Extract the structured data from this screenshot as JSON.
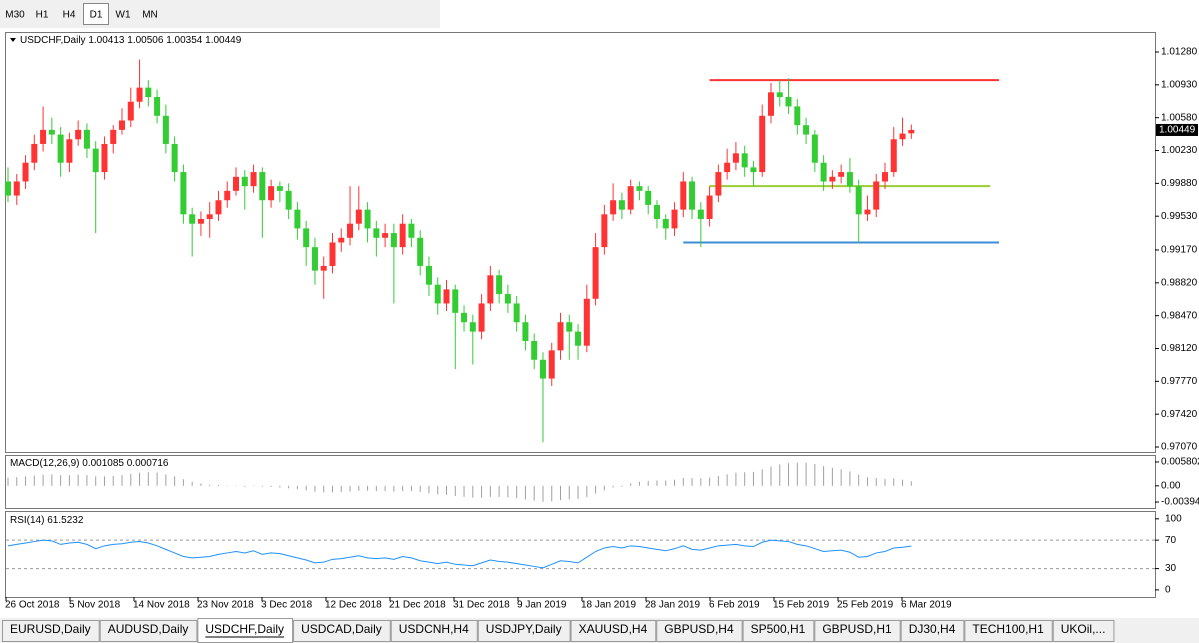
{
  "toolbar": {
    "timeframes": [
      "M30",
      "H1",
      "H4",
      "D1",
      "W1",
      "MN"
    ],
    "active": 3
  },
  "chart": {
    "type": "candlestick",
    "header": {
      "symbol": "USDCHF,Daily",
      "ohlc": [
        1.00413,
        1.00506,
        1.00354,
        1.00449
      ]
    },
    "up_color": "#ff3333",
    "down_color": "#33cc33",
    "ylim": [
      0.97017,
      1.01493
    ],
    "yticks": [
      {
        "value": 1.0128,
        "label": "1.01280"
      },
      {
        "value": 1.0093,
        "label": "1.00930"
      },
      {
        "value": 1.0058,
        "label": "1.00580"
      },
      {
        "value": 1.0023,
        "label": "1.00230"
      },
      {
        "value": 0.9988,
        "label": "0.99880"
      },
      {
        "value": 0.9953,
        "label": "0.99530"
      },
      {
        "value": 0.9917,
        "label": "0.99170"
      },
      {
        "value": 0.9882,
        "label": "0.98820"
      },
      {
        "value": 0.9847,
        "label": "0.98470"
      },
      {
        "value": 0.9812,
        "label": "0.98120"
      },
      {
        "value": 0.9777,
        "label": "0.97770"
      },
      {
        "value": 0.9742,
        "label": "0.97420"
      },
      {
        "value": 0.9707,
        "label": "0.97070"
      }
    ],
    "current_price": 1.00449,
    "x_labels": [
      "26 Oct 2018",
      "5 Nov 2018",
      "14 Nov 2018",
      "23 Nov 2018",
      "3 Dec 2018",
      "12 Dec 2018",
      "21 Dec 2018",
      "31 Dec 2018",
      "9 Jan 2019",
      "18 Jan 2019",
      "28 Jan 2019",
      "6 Feb 2019",
      "15 Feb 2019",
      "25 Feb 2019",
      "6 Mar 2019"
    ],
    "levels": [
      {
        "price": 1.0098,
        "color": "#ff3333",
        "start": 80,
        "end": 113
      },
      {
        "price": 0.9985,
        "color": "#9acd32",
        "start": 80,
        "end": 112
      },
      {
        "price": 0.9925,
        "color": "#3c8dd8",
        "start": 77,
        "end": 113
      }
    ],
    "candles": [
      [
        0.999,
        1.0005,
        0.9968,
        0.9975
      ],
      [
        0.9975,
        0.9998,
        0.9965,
        0.999
      ],
      [
        0.999,
        1.0018,
        0.9982,
        1.001
      ],
      [
        1.001,
        1.004,
        1.0002,
        1.003
      ],
      [
        1.003,
        1.007,
        1.0022,
        1.0045
      ],
      [
        1.0045,
        1.0058,
        1.003,
        1.004
      ],
      [
        1.004,
        1.0048,
        0.9995,
        1.001
      ],
      [
        1.001,
        1.0042,
        1.0,
        1.0035
      ],
      [
        1.0035,
        1.0055,
        1.0028,
        1.0045
      ],
      [
        1.0045,
        1.0052,
        1.0015,
        1.0025
      ],
      [
        1.0025,
        1.0033,
        0.9935,
        1.0
      ],
      [
        1.0,
        1.0038,
        0.9992,
        1.003
      ],
      [
        1.003,
        1.005,
        1.002,
        1.0045
      ],
      [
        1.0045,
        1.0068,
        1.004,
        1.0055
      ],
      [
        1.0055,
        1.009,
        1.0048,
        1.0075
      ],
      [
        1.0075,
        1.012,
        1.0068,
        1.009
      ],
      [
        1.009,
        1.0098,
        1.007,
        1.008
      ],
      [
        1.008,
        1.0088,
        1.0052,
        1.006
      ],
      [
        1.006,
        1.0072,
        1.002,
        1.003
      ],
      [
        1.003,
        1.0038,
        0.999,
        1.0
      ],
      [
        1.0,
        1.0008,
        0.9945,
        0.9955
      ],
      [
        0.9955,
        0.9962,
        0.991,
        0.9945
      ],
      [
        0.9945,
        0.9958,
        0.9932,
        0.995
      ],
      [
        0.995,
        0.9968,
        0.993,
        0.9955
      ],
      [
        0.9955,
        0.998,
        0.9948,
        0.997
      ],
      [
        0.997,
        0.999,
        0.9962,
        0.998
      ],
      [
        0.998,
        1.0005,
        0.9975,
        0.9995
      ],
      [
        0.9995,
        1.0002,
        0.996,
        0.9985
      ],
      [
        0.9985,
        1.0008,
        0.9978,
        1.0
      ],
      [
        1.0,
        1.0005,
        0.993,
        0.997
      ],
      [
        0.997,
        0.9992,
        0.9962,
        0.9985
      ],
      [
        0.9985,
        0.999,
        0.9968,
        0.998
      ],
      [
        0.998,
        0.9988,
        0.995,
        0.996
      ],
      [
        0.996,
        0.9968,
        0.9928,
        0.994
      ],
      [
        0.994,
        0.9948,
        0.99,
        0.992
      ],
      [
        0.992,
        0.993,
        0.988,
        0.9895
      ],
      [
        0.9895,
        0.991,
        0.9865,
        0.99
      ],
      [
        0.99,
        0.9935,
        0.9892,
        0.9925
      ],
      [
        0.9925,
        0.994,
        0.9915,
        0.993
      ],
      [
        0.993,
        0.9985,
        0.9922,
        0.9945
      ],
      [
        0.9945,
        0.9985,
        0.9938,
        0.996
      ],
      [
        0.996,
        0.9968,
        0.9925,
        0.994
      ],
      [
        0.994,
        0.9948,
        0.991,
        0.993
      ],
      [
        0.993,
        0.9945,
        0.992,
        0.9935
      ],
      [
        0.9935,
        0.9945,
        0.986,
        0.992
      ],
      [
        0.992,
        0.9955,
        0.9912,
        0.9945
      ],
      [
        0.9945,
        0.995,
        0.992,
        0.993
      ],
      [
        0.993,
        0.9938,
        0.989,
        0.99
      ],
      [
        0.99,
        0.991,
        0.9868,
        0.988
      ],
      [
        0.988,
        0.9888,
        0.9848,
        0.986
      ],
      [
        0.986,
        0.9885,
        0.9852,
        0.9875
      ],
      [
        0.9875,
        0.988,
        0.979,
        0.985
      ],
      [
        0.985,
        0.9858,
        0.983,
        0.984
      ],
      [
        0.984,
        0.9848,
        0.9795,
        0.983
      ],
      [
        0.983,
        0.987,
        0.9822,
        0.986
      ],
      [
        0.986,
        0.99,
        0.9852,
        0.989
      ],
      [
        0.989,
        0.9896,
        0.986,
        0.987
      ],
      [
        0.987,
        0.988,
        0.985,
        0.986
      ],
      [
        0.986,
        0.9868,
        0.983,
        0.984
      ],
      [
        0.984,
        0.9848,
        0.981,
        0.982
      ],
      [
        0.982,
        0.9828,
        0.979,
        0.98
      ],
      [
        0.98,
        0.9808,
        0.9712,
        0.978
      ],
      [
        0.978,
        0.9818,
        0.9772,
        0.981
      ],
      [
        0.981,
        0.985,
        0.98,
        0.984
      ],
      [
        0.984,
        0.9848,
        0.98,
        0.983
      ],
      [
        0.983,
        0.9838,
        0.98,
        0.9815
      ],
      [
        0.9815,
        0.988,
        0.9808,
        0.9865
      ],
      [
        0.9865,
        0.9935,
        0.9858,
        0.992
      ],
      [
        0.992,
        0.9965,
        0.9912,
        0.9955
      ],
      [
        0.9955,
        0.9988,
        0.9948,
        0.997
      ],
      [
        0.997,
        0.9978,
        0.995,
        0.996
      ],
      [
        0.996,
        0.9992,
        0.9955,
        0.9985
      ],
      [
        0.9985,
        0.999,
        0.997,
        0.998
      ],
      [
        0.998,
        0.9985,
        0.9955,
        0.9965
      ],
      [
        0.9965,
        0.997,
        0.994,
        0.995
      ],
      [
        0.995,
        0.9955,
        0.9928,
        0.994
      ],
      [
        0.994,
        0.9968,
        0.9932,
        0.996
      ],
      [
        0.996,
        1.0,
        0.9952,
        0.999
      ],
      [
        0.999,
        0.9995,
        0.995,
        0.996
      ],
      [
        0.996,
        0.9968,
        0.992,
        0.995
      ],
      [
        0.995,
        0.9985,
        0.9942,
        0.9975
      ],
      [
        0.9975,
        1.0008,
        0.9968,
        1.0
      ],
      [
        1.0,
        1.0025,
        0.9992,
        1.001
      ],
      [
        1.001,
        1.0032,
        1.0002,
        1.002
      ],
      [
        1.002,
        1.0028,
        0.9995,
        1.0005
      ],
      [
        1.0005,
        1.0012,
        0.9985,
        1.0
      ],
      [
        1.0,
        1.0072,
        0.9995,
        1.006
      ],
      [
        1.006,
        1.0095,
        1.0052,
        1.0085
      ],
      [
        1.0085,
        1.0098,
        1.007,
        1.008
      ],
      [
        1.008,
        1.01,
        1.0062,
        1.007
      ],
      [
        1.007,
        1.0078,
        1.004,
        1.005
      ],
      [
        1.005,
        1.0058,
        1.003,
        1.004
      ],
      [
        1.004,
        1.0045,
        1.0,
        1.001
      ],
      [
        1.001,
        1.0018,
        0.998,
        0.999
      ],
      [
        0.999,
        1.0002,
        0.9982,
        0.9995
      ],
      [
        0.9995,
        1.0008,
        0.9988,
        1.0
      ],
      [
        1.0,
        1.0015,
        0.9978,
        0.9985
      ],
      [
        0.9985,
        0.9992,
        0.9925,
        0.9955
      ],
      [
        0.9955,
        0.9975,
        0.9948,
        0.996
      ],
      [
        0.996,
        0.9998,
        0.9952,
        0.999
      ],
      [
        0.999,
        1.001,
        0.9982,
        1.0
      ],
      [
        1.0,
        1.0048,
        0.9995,
        1.0035
      ],
      [
        1.0035,
        1.0058,
        1.0028,
        1.0041
      ],
      [
        1.00413,
        1.00506,
        1.00354,
        1.00449
      ]
    ],
    "macd": {
      "label": "MACD(12,26,9)",
      "main": 0.001085,
      "signal": 0.000716,
      "color": "#a0a0a0",
      "ylim": [
        -0.0054,
        0.0075
      ],
      "yticks": [
        0.005802,
        {
          "value": 0,
          "label": "0.00"
        },
        -0.003945
      ],
      "values": [
        0.002,
        0.0021,
        0.0023,
        0.0025,
        0.0027,
        0.0028,
        0.0026,
        0.0026,
        0.0027,
        0.0026,
        0.0023,
        0.0023,
        0.0024,
        0.0026,
        0.0029,
        0.0032,
        0.0033,
        0.0032,
        0.0028,
        0.0023,
        0.0016,
        0.001,
        0.0006,
        0.0003,
        0.0002,
        0.0001,
        0.0001,
        0.0,
        0.0001,
        -0.0002,
        -0.0003,
        -0.0004,
        -0.0006,
        -0.0008,
        -0.0011,
        -0.0014,
        -0.0016,
        -0.0016,
        -0.0015,
        -0.0014,
        -0.0012,
        -0.0012,
        -0.0013,
        -0.0013,
        -0.0014,
        -0.0013,
        -0.0013,
        -0.0015,
        -0.0018,
        -0.0021,
        -0.0022,
        -0.0025,
        -0.0027,
        -0.0029,
        -0.0029,
        -0.0027,
        -0.0027,
        -0.0028,
        -0.003,
        -0.0033,
        -0.0036,
        -0.0039,
        -0.0038,
        -0.0035,
        -0.0033,
        -0.0032,
        -0.0027,
        -0.0019,
        -0.0011,
        -0.0004,
        0.0,
        0.0006,
        0.001,
        0.0012,
        0.0013,
        0.0013,
        0.0015,
        0.0019,
        0.0019,
        0.0018,
        0.002,
        0.0024,
        0.0028,
        0.0032,
        0.0033,
        0.0034,
        0.004,
        0.0047,
        0.0052,
        0.0055,
        0.0056,
        0.0056,
        0.0053,
        0.0048,
        0.0044,
        0.004,
        0.0035,
        0.0027,
        0.0021,
        0.0019,
        0.0017,
        0.0018,
        0.0015,
        0.001085
      ]
    },
    "rsi": {
      "label": "RSI(14)",
      "last": 61.5232,
      "color": "#1e90ff",
      "ylim": [
        -10,
        111
      ],
      "yticks": [
        100,
        70,
        30,
        0
      ],
      "levels": [
        70,
        30
      ],
      "values": [
        62,
        64,
        66,
        68,
        70,
        69,
        64,
        66,
        67,
        64,
        58,
        62,
        64,
        65,
        67,
        68,
        66,
        62,
        57,
        52,
        47,
        45,
        46,
        47,
        50,
        52,
        54,
        52,
        55,
        50,
        52,
        51,
        48,
        45,
        42,
        38,
        39,
        43,
        44,
        46,
        48,
        45,
        44,
        45,
        43,
        47,
        45,
        41,
        39,
        37,
        39,
        36,
        35,
        34,
        38,
        42,
        40,
        39,
        37,
        35,
        33,
        31,
        36,
        41,
        40,
        38,
        46,
        54,
        59,
        61,
        59,
        62,
        61,
        59,
        57,
        55,
        58,
        62,
        57,
        56,
        59,
        62,
        63,
        64,
        62,
        61,
        67,
        70,
        69,
        68,
        64,
        62,
        58,
        54,
        55,
        56,
        53,
        46,
        47,
        52,
        54,
        59,
        60,
        61.5232
      ]
    }
  },
  "tabs": {
    "items": [
      "EURUSD,Daily",
      "AUDUSD,Daily",
      "USDCHF,Daily",
      "USDCAD,Daily",
      "USDCNH,H4",
      "USDJPY,Daily",
      "XAUUSD,H4",
      "GBPUSD,H4",
      "SP500,H1",
      "GBPUSD,H1",
      "DJ30,H4",
      "TECH100,H1",
      "UKOil,..."
    ],
    "active": 2
  }
}
